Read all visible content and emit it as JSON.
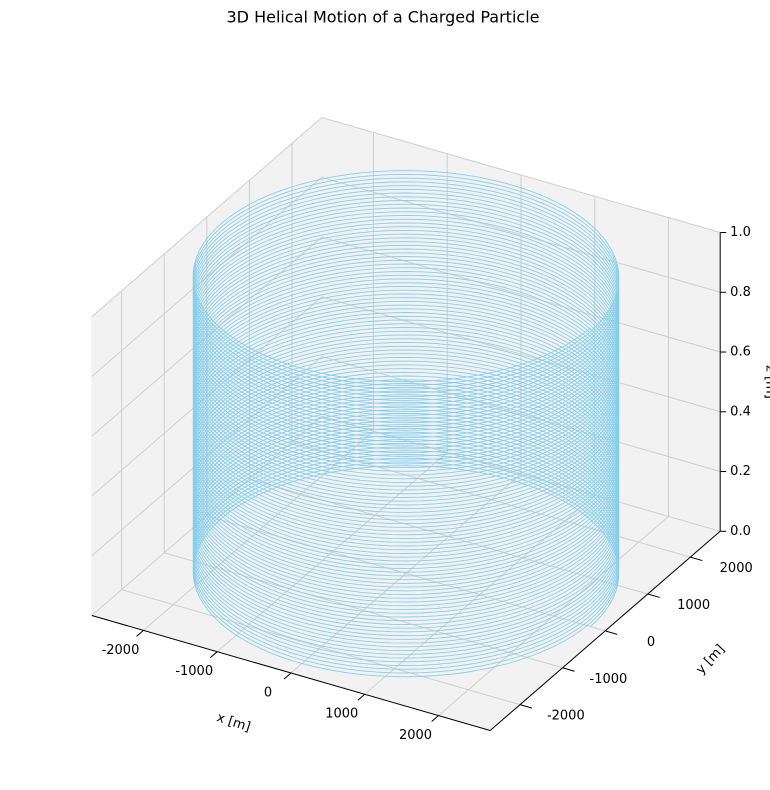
{
  "chart_data": {
    "type": "helix3d",
    "title": "3D Helical Motion of a Charged Particle",
    "xlabel": "x [m]",
    "ylabel": "y [m]",
    "zlabel": "z [m]",
    "radius": 2500,
    "turns": 80,
    "color": "#87ceeb",
    "xlim": [
      -2700,
      2700
    ],
    "ylim": [
      -2700,
      2700
    ],
    "zlim": [
      0,
      1
    ],
    "xticks": [
      -2000,
      -1000,
      0,
      1000,
      2000
    ],
    "yticks": [
      -2000,
      -1000,
      0,
      1000,
      2000
    ],
    "zticks": [
      {
        "value": 0,
        "label": "0.0"
      },
      {
        "value": 0.2,
        "label": "0.2"
      },
      {
        "value": 0.4,
        "label": "0.4"
      },
      {
        "value": 0.6,
        "label": "0.6"
      },
      {
        "value": 0.8,
        "label": "0.8"
      },
      {
        "value": 1,
        "label": "1.0"
      }
    ],
    "grid": true
  }
}
